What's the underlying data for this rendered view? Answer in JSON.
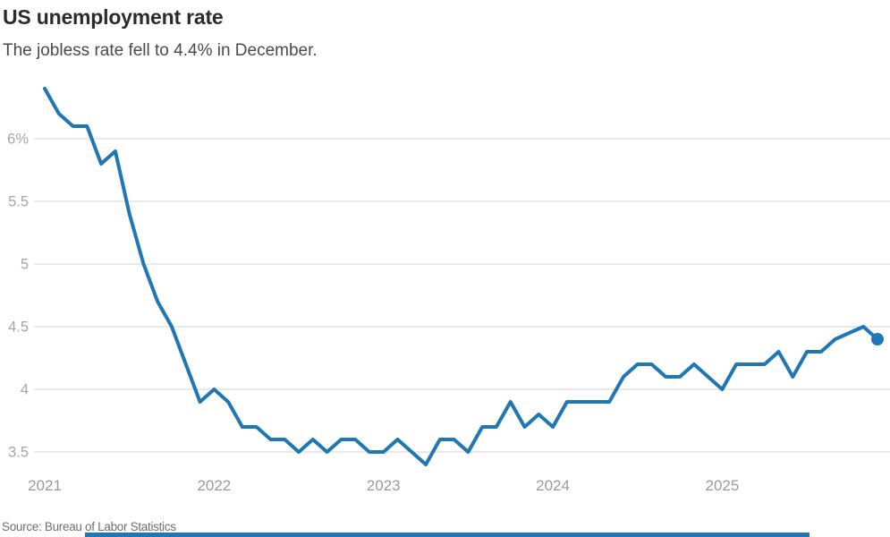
{
  "header": {
    "title": "US unemployment rate",
    "subtitle": "The jobless rate fell to 4.4% in December."
  },
  "footer": {
    "source": "Source: Bureau of Labor Statistics"
  },
  "colors": {
    "line": "#1f77b4",
    "end_dot": "#1f77b4",
    "grid": "#d6d6d6",
    "y_tick_label": "#a6a6a6",
    "x_tick_label": "#9a9a9a",
    "title": "#2b2b2b",
    "subtitle": "#4a4a4a",
    "source": "#6f6f6f",
    "accent_bar": "#1f77b4"
  },
  "chart_data": {
    "type": "line",
    "title": "US unemployment rate",
    "subtitle": "The jobless rate fell to 4.4% in December.",
    "unit": "percent",
    "x_start": "2021-01",
    "x_end": "2025-12",
    "x_freq": "monthly",
    "x_tick_labels": [
      "2021",
      "2022",
      "2023",
      "2024",
      "2025"
    ],
    "x_tick_month_indices": [
      0,
      12,
      24,
      36,
      48
    ],
    "y_ticks": [
      6,
      5.5,
      5,
      4.5,
      4,
      3.5
    ],
    "y_tick_labels": [
      "6%",
      "5.5",
      "5",
      "4.5",
      "4",
      "3.5"
    ],
    "ylim": [
      3.3,
      6.45
    ],
    "grid": "horizontal",
    "legend": "none",
    "series": [
      {
        "name": "Unemployment rate",
        "values": [
          6.4,
          6.2,
          6.1,
          6.1,
          5.8,
          5.9,
          5.4,
          5.0,
          4.7,
          4.5,
          4.2,
          3.9,
          4.0,
          3.9,
          3.7,
          3.7,
          3.6,
          3.6,
          3.5,
          3.6,
          3.5,
          3.6,
          3.6,
          3.5,
          3.5,
          3.6,
          3.5,
          3.4,
          3.6,
          3.6,
          3.5,
          3.7,
          3.7,
          3.9,
          3.7,
          3.8,
          3.7,
          3.9,
          3.9,
          3.9,
          3.9,
          4.1,
          4.2,
          4.2,
          4.1,
          4.1,
          4.2,
          4.1,
          4.0,
          4.2,
          4.2,
          4.2,
          4.3,
          4.1,
          4.3,
          4.3,
          4.4,
          null,
          4.5,
          4.4
        ]
      }
    ],
    "missing_points": [
      "2025-10"
    ],
    "end_point_marker": {
      "x": "2025-12",
      "value": 4.4
    }
  }
}
